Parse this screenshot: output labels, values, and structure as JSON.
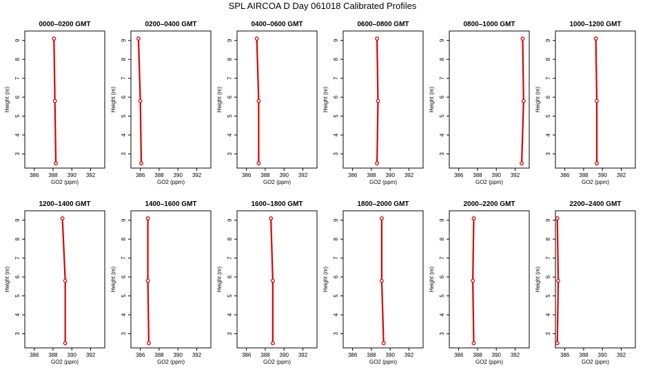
{
  "figure": {
    "title": "SPL AIRCOA D  Day 061018  Calibrated Profiles",
    "line_color": "#dd0000"
  },
  "chart_data": [
    {
      "type": "line",
      "title": "0000–0200 GMT",
      "xlabel": "GO2 (ppm)",
      "ylabel": "Height (m)",
      "xlim": [
        385,
        393.5
      ],
      "ylim": [
        2.25,
        9.5
      ],
      "xticks": [
        386,
        388,
        390,
        392
      ],
      "yticks": [
        3,
        4,
        5,
        6,
        7,
        8,
        9
      ],
      "series": [
        {
          "x": [
            388.3,
            388.2,
            388.1
          ],
          "y": [
            2.5,
            5.8,
            9.1
          ]
        }
      ]
    },
    {
      "type": "line",
      "title": "0200–0400 GMT",
      "xlabel": "GO2 (ppm)",
      "ylabel": "Height (m)",
      "xlim": [
        385,
        393.5
      ],
      "ylim": [
        2.25,
        9.5
      ],
      "xticks": [
        386,
        388,
        390,
        392
      ],
      "yticks": [
        3,
        4,
        5,
        6,
        7,
        8,
        9
      ],
      "series": [
        {
          "x": [
            386.1,
            386.0,
            385.8
          ],
          "y": [
            2.5,
            5.8,
            9.1
          ]
        }
      ]
    },
    {
      "type": "line",
      "title": "0400–0600 GMT",
      "xlabel": "GO2 (ppm)",
      "ylabel": "Height (m)",
      "xlim": [
        385,
        393.5
      ],
      "ylim": [
        2.25,
        9.5
      ],
      "xticks": [
        386,
        388,
        390,
        392
      ],
      "yticks": [
        3,
        4,
        5,
        6,
        7,
        8,
        9
      ],
      "series": [
        {
          "x": [
            387.3,
            387.3,
            387.1
          ],
          "y": [
            2.5,
            5.8,
            9.1
          ]
        }
      ]
    },
    {
      "type": "line",
      "title": "0600–0800 GMT",
      "xlabel": "GO2 (ppm)",
      "ylabel": "Height (m)",
      "xlim": [
        385,
        393.5
      ],
      "ylim": [
        2.25,
        9.5
      ],
      "xticks": [
        386,
        388,
        390,
        392
      ],
      "yticks": [
        3,
        4,
        5,
        6,
        7,
        8,
        9
      ],
      "series": [
        {
          "x": [
            388.6,
            388.7,
            388.6
          ],
          "y": [
            2.5,
            5.8,
            9.1
          ]
        }
      ]
    },
    {
      "type": "line",
      "title": "0800–1000 GMT",
      "xlabel": "GO2 (ppm)",
      "ylabel": "Height (m)",
      "xlim": [
        385,
        393.5
      ],
      "ylim": [
        2.25,
        9.5
      ],
      "xticks": [
        386,
        388,
        390,
        392
      ],
      "yticks": [
        3,
        4,
        5,
        6,
        7,
        8,
        9
      ],
      "series": [
        {
          "x": [
            392.7,
            392.9,
            392.8
          ],
          "y": [
            2.5,
            5.8,
            9.1
          ]
        }
      ]
    },
    {
      "type": "line",
      "title": "1000–1200 GMT",
      "xlabel": "GO2 (ppm)",
      "ylabel": "Height (m)",
      "xlim": [
        385,
        393.5
      ],
      "ylim": [
        2.25,
        9.5
      ],
      "xticks": [
        386,
        388,
        390,
        392
      ],
      "yticks": [
        3,
        4,
        5,
        6,
        7,
        8,
        9
      ],
      "series": [
        {
          "x": [
            389.4,
            389.4,
            389.3
          ],
          "y": [
            2.5,
            5.8,
            9.1
          ]
        }
      ]
    },
    {
      "type": "line",
      "title": "1200–1400 GMT",
      "xlabel": "GO2 (ppm)",
      "ylabel": "Height (m)",
      "xlim": [
        385,
        393.5
      ],
      "ylim": [
        2.25,
        9.5
      ],
      "xticks": [
        386,
        388,
        390,
        392
      ],
      "yticks": [
        3,
        4,
        5,
        6,
        7,
        8,
        9
      ],
      "series": [
        {
          "x": [
            389.3,
            389.3,
            389.0
          ],
          "y": [
            2.5,
            5.8,
            9.1
          ]
        }
      ]
    },
    {
      "type": "line",
      "title": "1400–1600 GMT",
      "xlabel": "GO2 (ppm)",
      "ylabel": "Height (m)",
      "xlim": [
        385,
        393.5
      ],
      "ylim": [
        2.25,
        9.5
      ],
      "xticks": [
        386,
        388,
        390,
        392
      ],
      "yticks": [
        3,
        4,
        5,
        6,
        7,
        8,
        9
      ],
      "series": [
        {
          "x": [
            386.9,
            386.8,
            386.8
          ],
          "y": [
            2.5,
            5.8,
            9.1
          ]
        }
      ]
    },
    {
      "type": "line",
      "title": "1600–1800 GMT",
      "xlabel": "GO2 (ppm)",
      "ylabel": "Height (m)",
      "xlim": [
        385,
        393.5
      ],
      "ylim": [
        2.25,
        9.5
      ],
      "xticks": [
        386,
        388,
        390,
        392
      ],
      "yticks": [
        3,
        4,
        5,
        6,
        7,
        8,
        9
      ],
      "series": [
        {
          "x": [
            388.8,
            388.8,
            388.6
          ],
          "y": [
            2.5,
            5.8,
            9.1
          ]
        }
      ]
    },
    {
      "type": "line",
      "title": "1800–2000 GMT",
      "xlabel": "GO2 (ppm)",
      "ylabel": "Height (m)",
      "xlim": [
        385,
        393.5
      ],
      "ylim": [
        2.25,
        9.5
      ],
      "xticks": [
        386,
        388,
        390,
        392
      ],
      "yticks": [
        3,
        4,
        5,
        6,
        7,
        8,
        9
      ],
      "series": [
        {
          "x": [
            389.3,
            389.1,
            389.1
          ],
          "y": [
            2.5,
            5.8,
            9.1
          ]
        }
      ]
    },
    {
      "type": "line",
      "title": "2000–2200 GMT",
      "xlabel": "GO2 (ppm)",
      "ylabel": "Height (m)",
      "xlim": [
        385,
        393.5
      ],
      "ylim": [
        2.25,
        9.5
      ],
      "xticks": [
        386,
        388,
        390,
        392
      ],
      "yticks": [
        3,
        4,
        5,
        6,
        7,
        8,
        9
      ],
      "series": [
        {
          "x": [
            387.6,
            387.5,
            387.6
          ],
          "y": [
            2.5,
            5.8,
            9.1
          ]
        }
      ]
    },
    {
      "type": "line",
      "title": "2200–2400 GMT",
      "xlabel": "GO2 (ppm)",
      "ylabel": "Height (m)",
      "xlim": [
        385,
        393.5
      ],
      "ylim": [
        2.25,
        9.5
      ],
      "xticks": [
        386,
        388,
        390,
        392
      ],
      "yticks": [
        3,
        4,
        5,
        6,
        7,
        8,
        9
      ],
      "series": [
        {
          "x": [
            385.2,
            385.3,
            385.2
          ],
          "y": [
            2.5,
            5.8,
            9.1
          ]
        }
      ]
    }
  ]
}
